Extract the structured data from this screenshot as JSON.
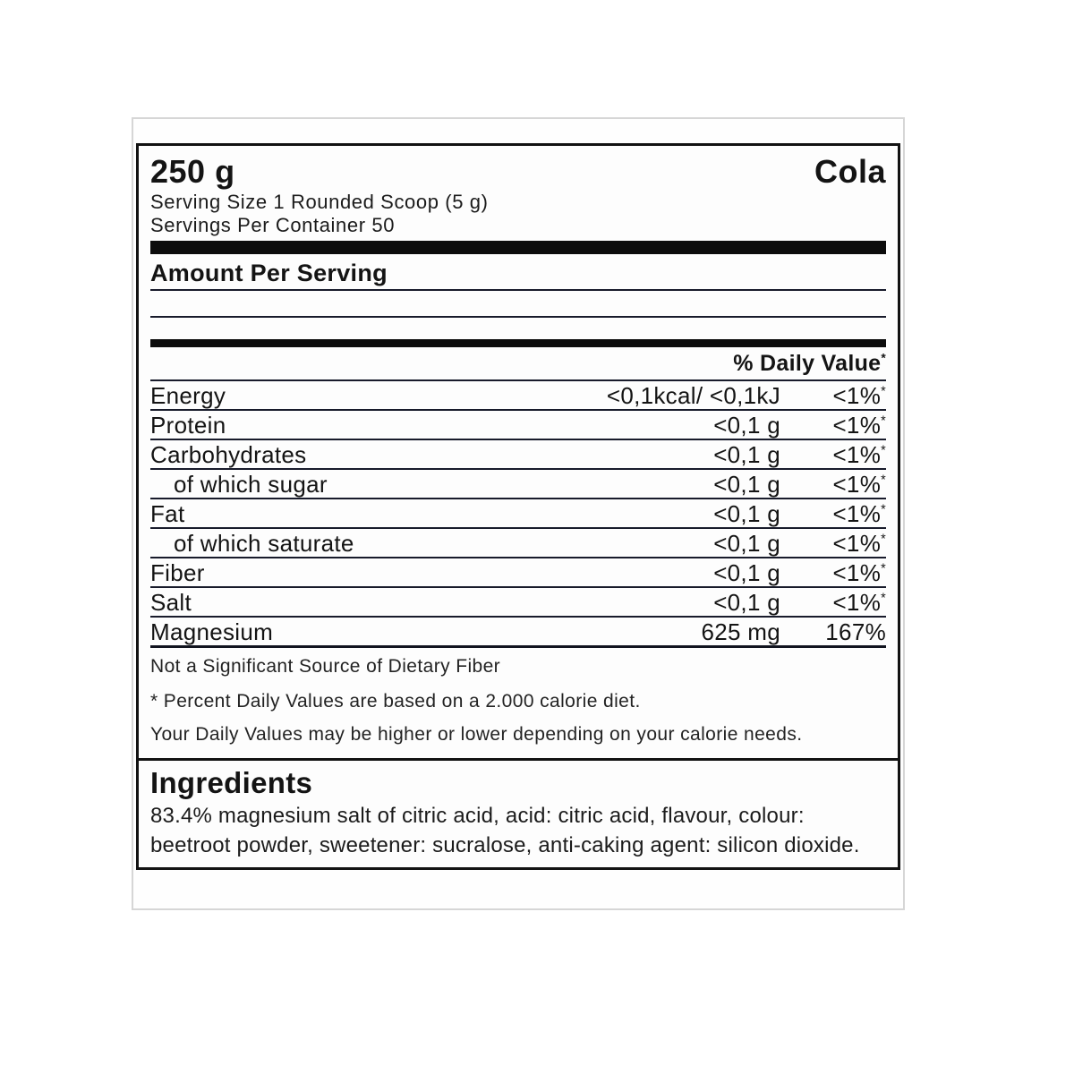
{
  "label": {
    "net_weight": "250 g",
    "flavor": "Cola",
    "serving_size": "Serving Size 1 Rounded Scoop (5 g)",
    "servings_per_container": "Servings Per Container 50",
    "amount_per_serving": "Amount Per Serving",
    "daily_value_header": "% Daily Value",
    "daily_value_header_sup": "*",
    "rows": [
      {
        "name": "Energy",
        "indent": false,
        "amount": "<0,1kcal/ <0,1kJ",
        "dv": "<1%",
        "dv_sup": "*"
      },
      {
        "name": "Protein",
        "indent": false,
        "amount": "<0,1 g",
        "dv": "<1%",
        "dv_sup": "*"
      },
      {
        "name": "Carbohydrates",
        "indent": false,
        "amount": "<0,1 g",
        "dv": "<1%",
        "dv_sup": "*"
      },
      {
        "name": "of which sugar",
        "indent": true,
        "amount": "<0,1 g",
        "dv": "<1%",
        "dv_sup": "*"
      },
      {
        "name": "Fat",
        "indent": false,
        "amount": "<0,1 g",
        "dv": "<1%",
        "dv_sup": "*"
      },
      {
        "name": "of which saturate",
        "indent": true,
        "amount": "<0,1 g",
        "dv": "<1%",
        "dv_sup": "*"
      },
      {
        "name": "Fiber",
        "indent": false,
        "amount": "<0,1 g",
        "dv": "<1%",
        "dv_sup": "*"
      },
      {
        "name": "Salt",
        "indent": false,
        "amount": "<0,1 g",
        "dv": "<1%",
        "dv_sup": "*"
      },
      {
        "name": "Magnesium",
        "indent": false,
        "amount": "625 mg",
        "dv": "167%",
        "dv_sup": ""
      }
    ],
    "notes": {
      "fiber_note": "Not a Significant Source of Dietary Fiber",
      "percent_note": "* Percent Daily Values are based on a 2.000 calorie diet.",
      "daily_note": "Your Daily Values may be higher or lower depending on your calorie needs."
    },
    "ingredients": {
      "heading": "Ingredients",
      "text": "83.4% magnesium salt of citric acid, acid: citric acid, flavour, colour: beetroot powder, sweetener: sucralose, anti-caking agent: silicon dioxide."
    },
    "colors": {
      "text": "#141414",
      "rule_line": "#181b2b",
      "divider_bar": "#0c0c0c",
      "sheet_edge": "#d6d6d6",
      "background": "#ffffff"
    }
  }
}
